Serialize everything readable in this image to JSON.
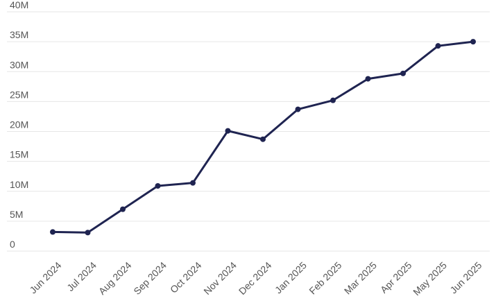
{
  "chart_data": {
    "type": "line",
    "categories": [
      "Jun 2024",
      "Jul 2024",
      "Aug 2024",
      "Sep 2024",
      "Oct 2024",
      "Nov 2024",
      "Dec 2024",
      "Jan 2025",
      "Feb 2025",
      "Mar 2025",
      "Apr 2025",
      "May 2025",
      "Jun 2025"
    ],
    "values": [
      3200000,
      3100000,
      7000000,
      10900000,
      11400000,
      20100000,
      18700000,
      23700000,
      25200000,
      28800000,
      29700000,
      34300000,
      35000000
    ],
    "color": "#1f2451",
    "ylim": [
      0,
      40000000
    ],
    "yticks": [
      0,
      {
        "value": 5000000,
        "label": "5M"
      },
      {
        "value": 10000000,
        "label": "10M"
      },
      {
        "value": 15000000,
        "label": "15M"
      },
      {
        "value": 20000000,
        "label": "20M"
      },
      {
        "value": 25000000,
        "label": "25M"
      },
      {
        "value": 30000000,
        "label": "30M"
      },
      {
        "value": 35000000,
        "label": "35M"
      },
      {
        "value": 40000000,
        "label": "40M"
      }
    ],
    "grid": true
  }
}
